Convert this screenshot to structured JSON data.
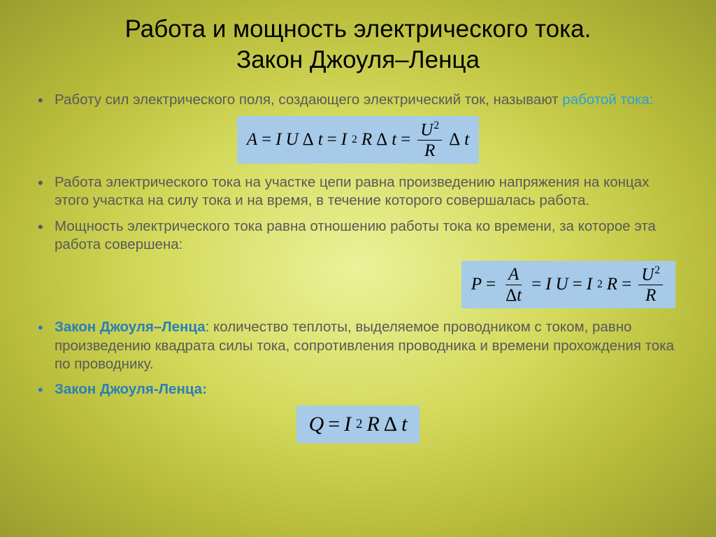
{
  "title_line1": "Работа и мощность электрического тока.",
  "title_line2": "Закон Джоуля–Ленца",
  "items": {
    "p1_a": "Работу сил электрического поля, создающего электрический ток, называют ",
    "p1_b": "работой   тока:",
    "p2": "Работа электрического тока на участке цепи равна произведению напряжения на концах этого участка на силу тока и на время, в течение которого совершалась работа.",
    "p3": "Мощность электрического тока равна отношению работы тока ко времени, за которое эта работа совершена:",
    "p4_a": "Закон Джоуля–Ленца",
    "p4_b": ": количество теплоты, выделяемое проводником с током, равно произведению квадрата силы тока, сопротивления проводника и времени прохождения тока по проводнику.",
    "p5": "Закон Джоуля-Ленца:"
  },
  "formulas": {
    "work": {
      "background": "#a6cae8",
      "A": "A",
      "eq": "=",
      "I": "I",
      "U": "U",
      "dt": "Δ",
      "t": "t",
      "R": "R",
      "two": "2"
    },
    "power": {
      "P": "P",
      "A": "A",
      "I": "I",
      "U": "U",
      "R": "R",
      "two": "2",
      "dt": "Δ",
      "t": "t"
    },
    "heat": {
      "Q": "Q",
      "I": "I",
      "R": "R",
      "two": "2",
      "dt": "Δ",
      "t": "t"
    }
  },
  "style": {
    "bg_gradient": [
      "#eaf29a",
      "#d4da5c",
      "#b8bc3a",
      "#9a9d2e"
    ],
    "formula_bg": "#a6cae8",
    "text_color": "#595959",
    "highlight_blue": "#2a9fd6",
    "bold_blue": "#2a7fb8",
    "title_fontsize": 35,
    "body_fontsize": 20.5,
    "formula_fontsize": 25
  }
}
